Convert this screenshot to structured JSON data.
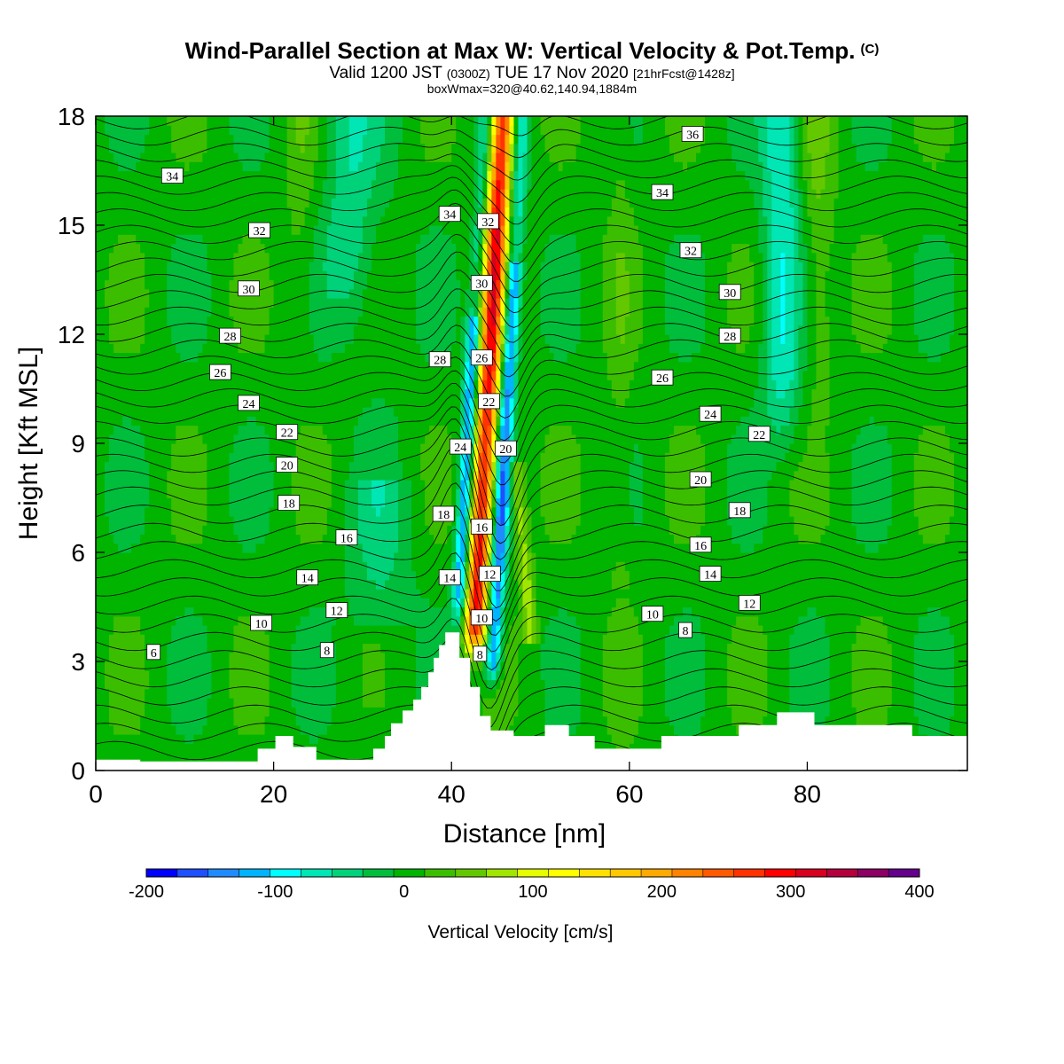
{
  "title": {
    "main": "Wind-Parallel Section at Max W: Vertical Velocity & Pot.Temp.",
    "copyright": "(C)",
    "valid_prefix": "Valid 1200 JST",
    "valid_utc": "(0300Z)",
    "valid_date": "TUE 17 Nov 2020",
    "forecast": "[21hrFcst@1428z]",
    "box_info": "boxWmax=320@40.62,140.94,1884m"
  },
  "chart_data": {
    "type": "heatmap",
    "xlabel": "Distance [nm]",
    "ylabel": "Height [Kft MSL]",
    "xlim": [
      0,
      98
    ],
    "ylim": [
      0,
      18
    ],
    "x_ticks": [
      "0",
      "20",
      "40",
      "60",
      "80"
    ],
    "y_ticks": [
      "0",
      "3",
      "6",
      "9",
      "12",
      "15",
      "18"
    ],
    "colorbar": {
      "label": "Vertical Velocity [cm/s]",
      "tick_labels": [
        "-200",
        "-100",
        "0",
        "100",
        "200",
        "300",
        "400"
      ],
      "min": -200,
      "max": 400,
      "step": 25,
      "colors": [
        "#0000ff",
        "#1e50ff",
        "#1e8cff",
        "#00b4ff",
        "#00ffff",
        "#00e6b4",
        "#00d27a",
        "#00be3c",
        "#00b400",
        "#3cbe00",
        "#64c800",
        "#a0e600",
        "#e6ff00",
        "#ffff00",
        "#ffe100",
        "#ffc800",
        "#ffaa00",
        "#ff8200",
        "#ff5a00",
        "#ff3200",
        "#ff0000",
        "#d7001e",
        "#b4003c",
        "#8c0064",
        "#64008c"
      ]
    },
    "contour_labels": [
      {
        "text": "34",
        "x": 8.6,
        "y": 16.35
      },
      {
        "text": "32",
        "x": 18.4,
        "y": 14.85
      },
      {
        "text": "30",
        "x": 17.2,
        "y": 13.25
      },
      {
        "text": "28",
        "x": 15.1,
        "y": 11.95
      },
      {
        "text": "26",
        "x": 14.0,
        "y": 10.95
      },
      {
        "text": "24",
        "x": 17.2,
        "y": 10.1
      },
      {
        "text": "22",
        "x": 21.5,
        "y": 9.3
      },
      {
        "text": "20",
        "x": 21.5,
        "y": 8.4
      },
      {
        "text": "18",
        "x": 21.7,
        "y": 7.35
      },
      {
        "text": "16",
        "x": 28.2,
        "y": 6.4
      },
      {
        "text": "14",
        "x": 23.8,
        "y": 5.3
      },
      {
        "text": "12",
        "x": 27.1,
        "y": 4.4
      },
      {
        "text": "10",
        "x": 18.6,
        "y": 4.05
      },
      {
        "text": "8",
        "x": 26.0,
        "y": 3.3
      },
      {
        "text": "6",
        "x": 6.5,
        "y": 3.25
      },
      {
        "text": "34",
        "x": 39.8,
        "y": 15.3
      },
      {
        "text": "32",
        "x": 44.1,
        "y": 15.1
      },
      {
        "text": "30",
        "x": 43.4,
        "y": 13.4
      },
      {
        "text": "28",
        "x": 38.7,
        "y": 11.3
      },
      {
        "text": "26",
        "x": 43.4,
        "y": 11.35
      },
      {
        "text": "22",
        "x": 44.2,
        "y": 10.15
      },
      {
        "text": "24",
        "x": 41.0,
        "y": 8.9
      },
      {
        "text": "20",
        "x": 46.1,
        "y": 8.85
      },
      {
        "text": "18",
        "x": 39.1,
        "y": 7.05
      },
      {
        "text": "16",
        "x": 43.4,
        "y": 6.7
      },
      {
        "text": "14",
        "x": 39.8,
        "y": 5.3
      },
      {
        "text": "12",
        "x": 44.3,
        "y": 5.4
      },
      {
        "text": "10",
        "x": 43.4,
        "y": 4.2
      },
      {
        "text": "8",
        "x": 43.2,
        "y": 3.2
      },
      {
        "text": "36",
        "x": 67.1,
        "y": 17.5
      },
      {
        "text": "34",
        "x": 63.7,
        "y": 15.9
      },
      {
        "text": "32",
        "x": 66.9,
        "y": 14.3
      },
      {
        "text": "30",
        "x": 71.3,
        "y": 13.15
      },
      {
        "text": "28",
        "x": 71.3,
        "y": 11.95
      },
      {
        "text": "26",
        "x": 63.7,
        "y": 10.8
      },
      {
        "text": "24",
        "x": 69.1,
        "y": 9.8
      },
      {
        "text": "22",
        "x": 74.6,
        "y": 9.25
      },
      {
        "text": "20",
        "x": 68.0,
        "y": 8.0
      },
      {
        "text": "18",
        "x": 72.4,
        "y": 7.15
      },
      {
        "text": "16",
        "x": 68.0,
        "y": 6.2
      },
      {
        "text": "14",
        "x": 69.1,
        "y": 5.4
      },
      {
        "text": "12",
        "x": 73.5,
        "y": 4.6
      },
      {
        "text": "10",
        "x": 62.6,
        "y": 4.3
      },
      {
        "text": "8",
        "x": 66.3,
        "y": 3.85
      }
    ],
    "terrain_profile": [
      [
        0,
        0.3
      ],
      [
        5,
        0.3
      ],
      [
        5,
        0.25
      ],
      [
        15,
        0.25
      ],
      [
        15,
        0.25
      ],
      [
        18.2,
        0.25
      ],
      [
        18.2,
        0.6
      ],
      [
        20.2,
        0.6
      ],
      [
        20.2,
        0.95
      ],
      [
        22.2,
        0.95
      ],
      [
        22.2,
        0.65
      ],
      [
        24.8,
        0.65
      ],
      [
        24.8,
        0.3
      ],
      [
        31.2,
        0.3
      ],
      [
        31.2,
        0.6
      ],
      [
        32.5,
        0.6
      ],
      [
        32.5,
        0.95
      ],
      [
        33.2,
        0.95
      ],
      [
        33.2,
        1.3
      ],
      [
        34.5,
        1.3
      ],
      [
        34.5,
        1.65
      ],
      [
        35.7,
        1.65
      ],
      [
        35.7,
        1.95
      ],
      [
        36.6,
        1.95
      ],
      [
        36.6,
        2.3
      ],
      [
        37.4,
        2.3
      ],
      [
        37.4,
        2.7
      ],
      [
        38.0,
        2.7
      ],
      [
        38.0,
        3.1
      ],
      [
        38.6,
        3.1
      ],
      [
        38.6,
        3.45
      ],
      [
        39.3,
        3.45
      ],
      [
        39.3,
        3.8
      ],
      [
        40.9,
        3.8
      ],
      [
        40.9,
        3.1
      ],
      [
        42.1,
        3.1
      ],
      [
        42.1,
        2.3
      ],
      [
        43.2,
        2.3
      ],
      [
        43.2,
        1.5
      ],
      [
        44.4,
        1.5
      ],
      [
        44.4,
        1.1
      ],
      [
        47.0,
        1.1
      ],
      [
        47.0,
        0.95
      ],
      [
        50.5,
        0.95
      ],
      [
        50.5,
        1.25
      ],
      [
        53.2,
        1.25
      ],
      [
        53.2,
        0.95
      ],
      [
        56.1,
        0.95
      ],
      [
        56.1,
        0.6
      ],
      [
        63.6,
        0.6
      ],
      [
        63.6,
        0.95
      ],
      [
        72.3,
        0.95
      ],
      [
        72.3,
        1.25
      ],
      [
        76.6,
        1.25
      ],
      [
        76.6,
        1.6
      ],
      [
        80.8,
        1.6
      ],
      [
        80.8,
        1.25
      ],
      [
        91.8,
        1.25
      ],
      [
        91.8,
        0.95
      ],
      [
        98,
        0.95
      ]
    ]
  }
}
